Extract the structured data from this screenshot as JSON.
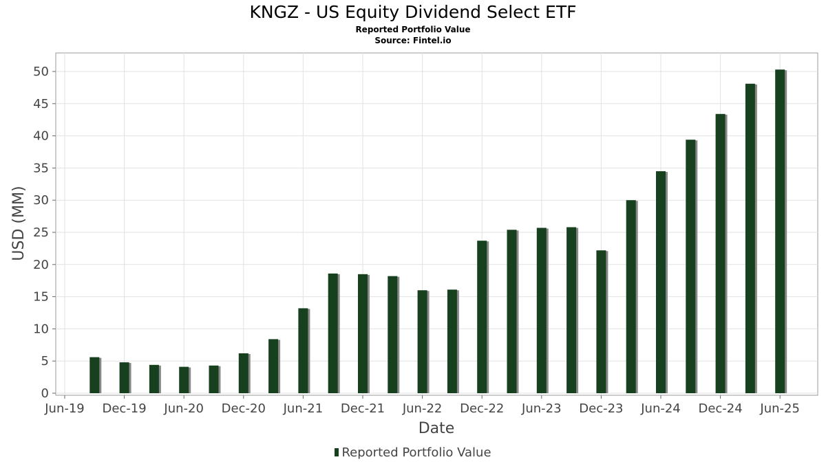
{
  "chart_data": {
    "type": "bar",
    "title": "KNGZ - US Equity Dividend Select ETF",
    "subtitle": "Reported Portfolio Value",
    "source": "Source: Fintel.io",
    "xlabel": "Date",
    "ylabel": "USD (MM)",
    "ylim": [
      0,
      52.5
    ],
    "yticks": [
      0,
      5,
      10,
      15,
      20,
      25,
      30,
      35,
      40,
      45,
      50
    ],
    "xtick_labels": [
      "Jun-19",
      "Dec-19",
      "Jun-20",
      "Dec-20",
      "Jun-21",
      "Dec-21",
      "Jun-22",
      "Dec-22",
      "Jun-23",
      "Dec-23",
      "Jun-24",
      "Dec-24",
      "Jun-25"
    ],
    "grid": true,
    "legend": "bottom-center",
    "categories": [
      "Sep-19",
      "Dec-19",
      "Mar-20",
      "Jun-20",
      "Sep-20",
      "Dec-20",
      "Mar-21",
      "Jun-21",
      "Sep-21",
      "Dec-21",
      "Mar-22",
      "Jun-22",
      "Sep-22",
      "Dec-22",
      "Mar-23",
      "Jun-23",
      "Sep-23",
      "Dec-23",
      "Mar-24",
      "Jun-24",
      "Sep-24",
      "Dec-24",
      "Mar-25",
      "Jun-25"
    ],
    "series": [
      {
        "name": "Reported Portfolio Value",
        "color": "#17401f",
        "values": [
          5.6,
          4.8,
          4.4,
          4.1,
          4.3,
          6.2,
          8.4,
          13.2,
          18.6,
          18.5,
          18.2,
          16.0,
          16.1,
          23.7,
          25.4,
          25.7,
          25.8,
          22.2,
          30.0,
          34.5,
          39.4,
          43.4,
          48.1,
          50.3
        ]
      }
    ]
  }
}
